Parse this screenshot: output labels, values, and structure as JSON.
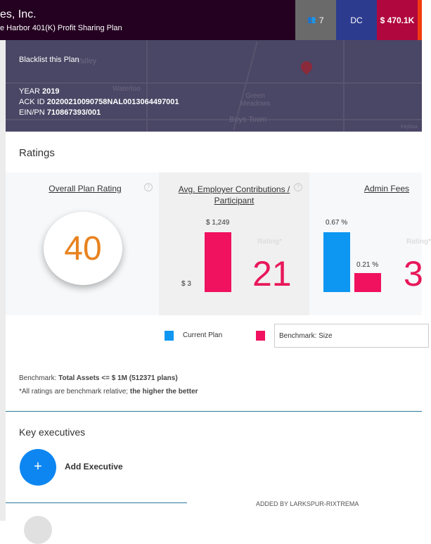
{
  "header": {
    "title": "es, Inc.",
    "subtitle": "e Harbor 401(K) Profit Sharing Plan",
    "participants": "7",
    "plan_type": "DC",
    "assets": "$ 470.1K"
  },
  "map_panel": {
    "blacklist": "Blacklist this Plan",
    "year_label": "YEAR",
    "year": "2019",
    "ack_label": "ACK ID",
    "ack_id": "20200210090758NAL0013064497001",
    "ein_label": "EIN/PN",
    "ein": "710867393/001",
    "map_labels": [
      "Valley",
      "Waterloo",
      "Green Meadows",
      "Boys Town",
      "Keyboa"
    ]
  },
  "ratings": {
    "heading": "Ratings",
    "overall": {
      "title": "Overall Plan Rating",
      "value": "40"
    },
    "employer": {
      "title": "Avg. Employer Contributions / Participant",
      "current_label": "$ 3",
      "benchmark_label": "$ 1,249",
      "current": 3,
      "benchmark": 1249,
      "rating_label": "Rating*",
      "rating": "21"
    },
    "admin": {
      "title": "Admin Fees",
      "current_label": "0.67 %",
      "benchmark_label": "0.21 %",
      "current": 0.67,
      "benchmark": 0.21,
      "rating_label": "Rating*",
      "rating": "3"
    },
    "legend": {
      "current": "Current Plan",
      "benchmark_select": "Benchmark: Size"
    },
    "colors": {
      "current": "#0d96f2",
      "benchmark": "#f0115f"
    },
    "benchmark_prefix": "Benchmark:",
    "benchmark_text": "Total Assets <= $ 1M (512371 plans)",
    "note_prefix": "*All ratings are benchmark relative;",
    "note_bold": "the higher the better"
  },
  "executives": {
    "heading": "Key executives",
    "add_label": "Add Executive",
    "added_by": "ADDED BY LARKSPUR-RIXTREMA"
  }
}
